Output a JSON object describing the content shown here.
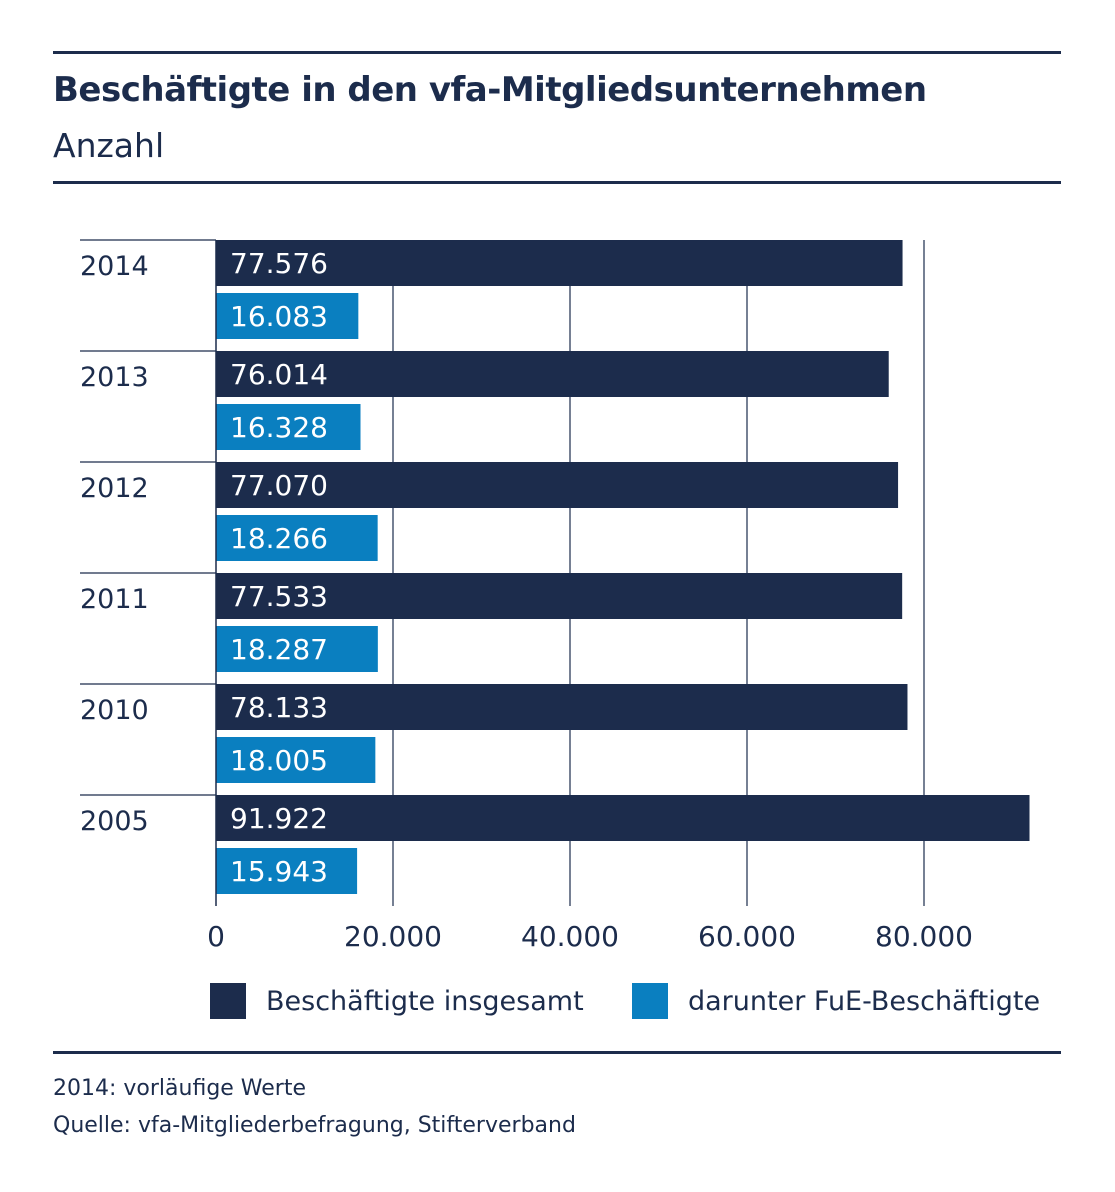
{
  "header": {
    "title": "Beschäftigte in den vfa-Mitgliedsunternehmen",
    "subtitle": "Anzahl"
  },
  "legend": {
    "total_label": "Beschäftigte insgesamt",
    "rd_label": "darunter FuE-Beschäftigte"
  },
  "footer": {
    "note": "2014: vorläufige Werte",
    "source": "Quelle: vfa-Mitgliederbefragung, Stifterverband"
  },
  "colors": {
    "total": "#1c2c4c",
    "rd": "#0a7fc0",
    "text": "#1c2c4c"
  },
  "chart_data": {
    "type": "bar",
    "orientation": "horizontal",
    "categories": [
      "2014",
      "2013",
      "2012",
      "2011",
      "2010",
      "2005"
    ],
    "series": [
      {
        "name": "Beschäftigte insgesamt",
        "values": [
          77576,
          76014,
          77070,
          77533,
          78133,
          91922
        ],
        "labels": [
          "77.576",
          "76.014",
          "77.070",
          "77.533",
          "78.133",
          "91.922"
        ]
      },
      {
        "name": "darunter FuE-Beschäftigte",
        "values": [
          16083,
          16328,
          18266,
          18287,
          18005,
          15943
        ],
        "labels": [
          "16.083",
          "16.328",
          "18.266",
          "18.287",
          "18.005",
          "15.943"
        ]
      }
    ],
    "xlim": [
      0,
      100000
    ],
    "xticks": [
      0,
      20000,
      40000,
      60000,
      80000
    ],
    "xtick_labels": [
      "0",
      "20.000",
      "40.000",
      "60.000",
      "80.000"
    ],
    "grid": true,
    "legend_position": "bottom"
  }
}
